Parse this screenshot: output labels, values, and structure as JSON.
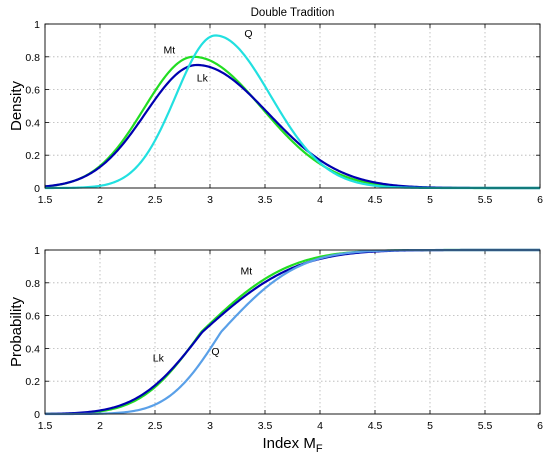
{
  "chart_data": [
    {
      "type": "line",
      "title": "Double Tradition",
      "xlabel": "",
      "ylabel": "Density",
      "xlim": [
        1.5,
        6
      ],
      "ylim": [
        0,
        1
      ],
      "xticks": [
        "1.5",
        "2",
        "2.5",
        "3",
        "3.5",
        "4",
        "4.5",
        "5",
        "5.5",
        "6"
      ],
      "yticks": [
        "0",
        "0.2",
        "0.4",
        "0.6",
        "0.8",
        "1"
      ],
      "grid": true,
      "series": [
        {
          "name": "Mt",
          "color": "#22dd22",
          "kind": "density",
          "params": {
            "mu": 2.85,
            "sd": 0.5,
            "peak": 0.8,
            "right_tail": 0.56
          }
        },
        {
          "name": "Lk",
          "color": "#0000b0",
          "kind": "density",
          "params": {
            "mu": 2.88,
            "sd": 0.52,
            "peak": 0.75,
            "right_tail": 0.56
          }
        },
        {
          "name": "Q",
          "color": "#22e0e0",
          "kind": "density",
          "params": {
            "mu": 3.05,
            "sd": 0.4,
            "peak": 0.93,
            "right_tail": 0.52
          }
        }
      ],
      "annotations": [
        {
          "text": "Mt",
          "x": 2.63,
          "y": 0.82
        },
        {
          "text": "Lk",
          "x": 2.93,
          "y": 0.65
        },
        {
          "text": "Q",
          "x": 3.35,
          "y": 0.92
        }
      ]
    },
    {
      "type": "line",
      "title": "",
      "xlabel": "Index M",
      "xlabel_sub": "F",
      "ylabel": "Probability",
      "xlim": [
        1.5,
        6
      ],
      "ylim": [
        0,
        1
      ],
      "xticks": [
        "1.5",
        "2",
        "2.5",
        "3",
        "3.5",
        "4",
        "4.5",
        "5",
        "5.5",
        "6"
      ],
      "yticks": [
        "0",
        "0.2",
        "0.4",
        "0.6",
        "0.8",
        "1"
      ],
      "grid": true,
      "series": [
        {
          "name": "Mt",
          "color": "#22dd22",
          "kind": "cdf",
          "params": {
            "mu": 2.92,
            "sd": 0.43,
            "skew": 1.45
          }
        },
        {
          "name": "Lk",
          "color": "#0000b0",
          "kind": "cdf",
          "params": {
            "mu": 2.93,
            "sd": 0.46,
            "skew": 1.45
          }
        },
        {
          "name": "Q",
          "color": "#5aa0e8",
          "kind": "cdf",
          "params": {
            "mu": 3.1,
            "sd": 0.38,
            "skew": 1.45
          }
        }
      ],
      "annotations": [
        {
          "text": "Mt",
          "x": 3.33,
          "y": 0.85
        },
        {
          "text": "Lk",
          "x": 2.53,
          "y": 0.32
        },
        {
          "text": "Q",
          "x": 3.05,
          "y": 0.36
        }
      ]
    }
  ]
}
